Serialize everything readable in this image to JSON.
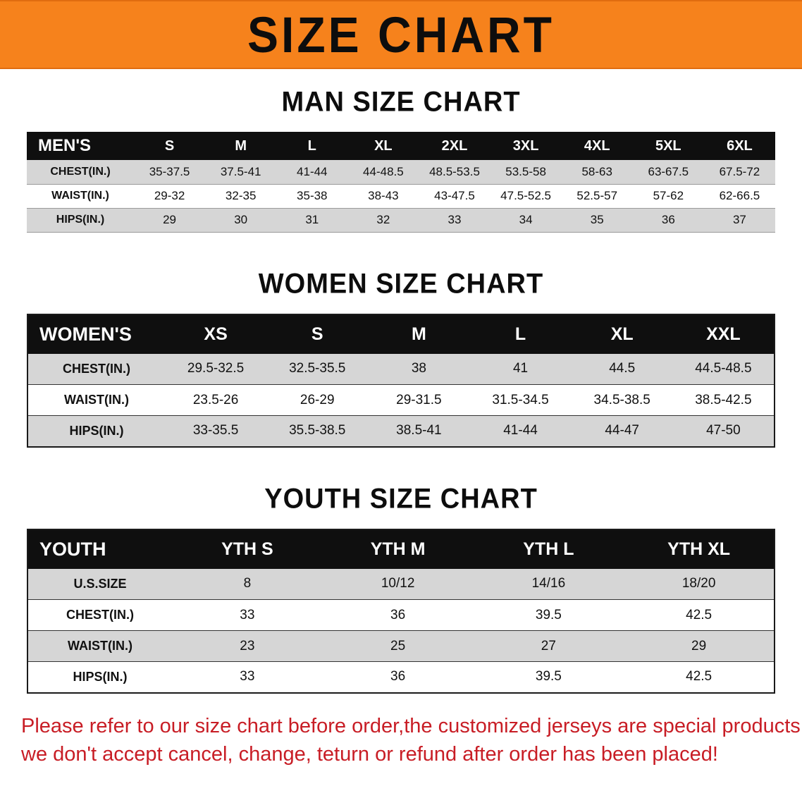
{
  "banner": {
    "title": "SIZE CHART",
    "bg_color": "#f6821c",
    "text_color": "#0d0d0d"
  },
  "men": {
    "heading": "MAN SIZE CHART",
    "table": {
      "label": "MEN'S",
      "columns": [
        "S",
        "M",
        "L",
        "XL",
        "2XL",
        "3XL",
        "4XL",
        "5XL",
        "6XL"
      ],
      "rows": [
        {
          "label": "CHEST(IN.)",
          "values": [
            "35-37.5",
            "37.5-41",
            "41-44",
            "44-48.5",
            "48.5-53.5",
            "53.5-58",
            "58-63",
            "63-67.5",
            "67.5-72"
          ]
        },
        {
          "label": "WAIST(IN.)",
          "values": [
            "29-32",
            "32-35",
            "35-38",
            "38-43",
            "43-47.5",
            "47.5-52.5",
            "52.5-57",
            "57-62",
            "62-66.5"
          ]
        },
        {
          "label": "HIPS(IN.)",
          "values": [
            "29",
            "30",
            "31",
            "32",
            "33",
            "34",
            "35",
            "36",
            "37"
          ]
        }
      ]
    }
  },
  "women": {
    "heading": "WOMEN SIZE CHART",
    "table": {
      "label": "WOMEN'S",
      "columns": [
        "XS",
        "S",
        "M",
        "L",
        "XL",
        "XXL"
      ],
      "rows": [
        {
          "label": "CHEST(IN.)",
          "values": [
            "29.5-32.5",
            "32.5-35.5",
            "38",
            "41",
            "44.5",
            "44.5-48.5"
          ]
        },
        {
          "label": "WAIST(IN.)",
          "values": [
            "23.5-26",
            "26-29",
            "29-31.5",
            "31.5-34.5",
            "34.5-38.5",
            "38.5-42.5"
          ]
        },
        {
          "label": "HIPS(IN.)",
          "values": [
            "33-35.5",
            "35.5-38.5",
            "38.5-41",
            "41-44",
            "44-47",
            "47-50"
          ]
        }
      ]
    }
  },
  "youth": {
    "heading": "YOUTH SIZE CHART",
    "table": {
      "label": "YOUTH",
      "columns": [
        "YTH S",
        "YTH M",
        "YTH L",
        "YTH XL"
      ],
      "rows": [
        {
          "label": "U.S.SIZE",
          "values": [
            "8",
            "10/12",
            "14/16",
            "18/20"
          ]
        },
        {
          "label": "CHEST(IN.)",
          "values": [
            "33",
            "36",
            "39.5",
            "42.5"
          ]
        },
        {
          "label": "WAIST(IN.)",
          "values": [
            "23",
            "25",
            "27",
            "29"
          ]
        },
        {
          "label": "HIPS(IN.)",
          "values": [
            "33",
            "36",
            "39.5",
            "42.5"
          ]
        }
      ]
    }
  },
  "footer": {
    "line1": "Please refer to our size chart before order,the customized jerseys are special products,",
    "line2": "we don't accept cancel, change, teturn or refund after order has been placed!",
    "text_color": "#c81d25"
  }
}
